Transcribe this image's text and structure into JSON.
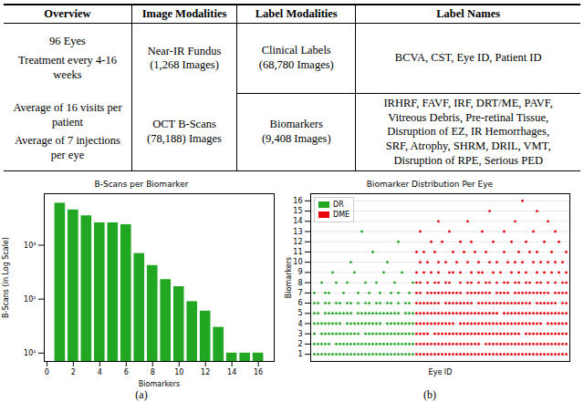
{
  "table": {
    "header": [
      "Overview",
      "Image Modalities",
      "Label Modalities",
      "Label Names"
    ],
    "rows": [
      {
        "overview": [
          "96 Eyes",
          "Treatment every 4-16 weeks"
        ],
        "image_modality": [
          "Near-IR Fundus",
          "(1,268 Images)"
        ],
        "label_modality": [
          "Clinical Labels",
          "(68,780 Images)"
        ],
        "label_names": [
          "BCVA, CST, Eye ID, Patient ID"
        ]
      },
      {
        "overview": [
          "Average of 16 visits per patient",
          "Average of 7 injections per eye"
        ],
        "image_modality": [
          "OCT B-Scans",
          "(78,188) Images"
        ],
        "label_modality": [
          "Biomarkers",
          "(9,408 Images)"
        ],
        "label_names": [
          "IRHRF, FAVF, IRF, DRT/ME, PAVF,",
          "Vitreous Debris, Pre-retinal Tissue,",
          "Disruption of EZ, IR Hemorrhages,",
          "SRF, Atrophy, SHRM, DRIL, VMT,",
          "Disruption of RPE, Serious PED"
        ]
      }
    ]
  },
  "chart_data": [
    {
      "type": "bar",
      "title": "B-Scans per Biomarker",
      "caption": "(a)",
      "x_label": "Biomarkers",
      "y_label": "B-Scans (in Log Scale)",
      "x": [
        1,
        2,
        3,
        4,
        5,
        6,
        7,
        8,
        9,
        10,
        11,
        12,
        13,
        14,
        15,
        16
      ],
      "values": [
        6000,
        4500,
        3500,
        2600,
        2600,
        2400,
        700,
        420,
        230,
        170,
        90,
        60,
        30,
        10,
        10,
        10
      ],
      "color": "#22a722",
      "log": "y",
      "xlim": [
        -0.2,
        17.2
      ],
      "xticks": [
        0,
        2,
        4,
        6,
        8,
        10,
        12,
        14,
        16
      ],
      "ylim": [
        7,
        9000
      ],
      "yticks": [
        {
          "value": 10,
          "label": "10¹"
        },
        {
          "value": 100,
          "label": "10²"
        },
        {
          "value": 1000,
          "label": "10³"
        }
      ]
    },
    {
      "type": "scatter",
      "title": "Biomarker Distribution Per Eye",
      "caption": "(b)",
      "x_label": "Eye ID",
      "y_label": "Biomarkers",
      "xlim": [
        0,
        71
      ],
      "ylim": [
        0.3,
        16.7
      ],
      "yticks": [
        1,
        2,
        3,
        4,
        5,
        6,
        7,
        8,
        9,
        10,
        11,
        12,
        13,
        14,
        15,
        16
      ],
      "grid": true,
      "legend": "upper left",
      "tick_labels": "y",
      "marker": "dot",
      "series": [
        {
          "name": "DR",
          "color": "#22a722",
          "points_by_biomarker": [
            {
              "biomarker": 1,
              "eye_ids": [
                1,
                2,
                3,
                4,
                5,
                6,
                7,
                8,
                9,
                10,
                11,
                12,
                13,
                14,
                15,
                16,
                17,
                18,
                19,
                20,
                21,
                22,
                23,
                24,
                25,
                26,
                27,
                28
              ]
            },
            {
              "biomarker": 2,
              "eye_ids": [
                1,
                2,
                3,
                4,
                5,
                7,
                8,
                9,
                10,
                11,
                12,
                13,
                14,
                15,
                16,
                17,
                18,
                19,
                20,
                21,
                22,
                23,
                24,
                25,
                26,
                27,
                28
              ]
            },
            {
              "biomarker": 3,
              "eye_ids": [
                1,
                3,
                4,
                5,
                6,
                7,
                8,
                9,
                10,
                11,
                12,
                13,
                15,
                16,
                17,
                18,
                19,
                20,
                21,
                22,
                23,
                24,
                25,
                26,
                27,
                28
              ]
            },
            {
              "biomarker": 4,
              "eye_ids": [
                1,
                2,
                3,
                4,
                5,
                6,
                7,
                8,
                10,
                11,
                12,
                13,
                14,
                15,
                16,
                17,
                18,
                19,
                21,
                22,
                23,
                24,
                25,
                26,
                27,
                28
              ]
            },
            {
              "biomarker": 5,
              "eye_ids": [
                1,
                2,
                4,
                5,
                6,
                7,
                8,
                9,
                10,
                11,
                13,
                14,
                15,
                16,
                17,
                18,
                19,
                20,
                21,
                22,
                23,
                24,
                26,
                27,
                28
              ]
            },
            {
              "biomarker": 6,
              "eye_ids": [
                1,
                2,
                4,
                5,
                7,
                8,
                10,
                11,
                13,
                15,
                16,
                18,
                19,
                21,
                22,
                24,
                26,
                27
              ]
            },
            {
              "biomarker": 7,
              "eye_ids": [
                1,
                4,
                5,
                9,
                13,
                16,
                19,
                22,
                24,
                27
              ]
            },
            {
              "biomarker": 8,
              "eye_ids": [
                3,
                7,
                10,
                15,
                18,
                23,
                28
              ]
            },
            {
              "biomarker": 9,
              "eye_ids": [
                6,
                12,
                20,
                25
              ]
            },
            {
              "biomarker": 10,
              "eye_ids": [
                11,
                21
              ]
            },
            {
              "biomarker": 11,
              "eye_ids": [
                17
              ]
            },
            {
              "biomarker": 12,
              "eye_ids": [
                24
              ]
            },
            {
              "biomarker": 13,
              "eye_ids": [
                14
              ]
            }
          ]
        },
        {
          "name": "DME",
          "color": "#e8000b",
          "points_by_biomarker": [
            {
              "biomarker": 1,
              "eye_ids": [
                29,
                30,
                31,
                32,
                33,
                34,
                35,
                36,
                37,
                38,
                39,
                40,
                41,
                42,
                43,
                44,
                45,
                46,
                47,
                48,
                49,
                50,
                51,
                52,
                53,
                54,
                55,
                56,
                57,
                58,
                59,
                60,
                61,
                62,
                63,
                64,
                65,
                66,
                67,
                68,
                69,
                70
              ]
            },
            {
              "biomarker": 2,
              "eye_ids": [
                29,
                30,
                31,
                32,
                33,
                34,
                35,
                36,
                37,
                38,
                39,
                40,
                41,
                42,
                43,
                44,
                45,
                46,
                48,
                49,
                50,
                51,
                52,
                53,
                54,
                55,
                56,
                57,
                58,
                59,
                60,
                61,
                62,
                63,
                64,
                65,
                66,
                67,
                68,
                69,
                70
              ]
            },
            {
              "biomarker": 3,
              "eye_ids": [
                29,
                30,
                31,
                32,
                34,
                35,
                36,
                37,
                38,
                39,
                40,
                41,
                42,
                43,
                44,
                45,
                46,
                47,
                48,
                49,
                50,
                51,
                52,
                53,
                54,
                55,
                56,
                57,
                59,
                60,
                61,
                62,
                63,
                64,
                65,
                66,
                67,
                68,
                69,
                70
              ]
            },
            {
              "biomarker": 4,
              "eye_ids": [
                29,
                30,
                31,
                32,
                33,
                34,
                35,
                36,
                37,
                38,
                39,
                41,
                42,
                43,
                44,
                45,
                46,
                47,
                48,
                49,
                50,
                51,
                52,
                53,
                54,
                55,
                56,
                57,
                58,
                59,
                60,
                61,
                62,
                63,
                65,
                66,
                67,
                68,
                69,
                70
              ]
            },
            {
              "biomarker": 5,
              "eye_ids": [
                29,
                30,
                31,
                32,
                33,
                34,
                35,
                36,
                37,
                38,
                39,
                40,
                41,
                42,
                43,
                44,
                45,
                46,
                47,
                48,
                49,
                50,
                51,
                53,
                54,
                55,
                56,
                57,
                58,
                59,
                60,
                61,
                62,
                63,
                64,
                65,
                66,
                67,
                68,
                69,
                70
              ]
            },
            {
              "biomarker": 6,
              "eye_ids": [
                29,
                30,
                31,
                32,
                33,
                34,
                35,
                37,
                38,
                39,
                40,
                41,
                42,
                43,
                44,
                46,
                47,
                48,
                49,
                50,
                51,
                52,
                53,
                54,
                55,
                56,
                57,
                58,
                59,
                60,
                62,
                63,
                64,
                65,
                66,
                67,
                69,
                70
              ]
            },
            {
              "biomarker": 7,
              "eye_ids": [
                29,
                30,
                32,
                33,
                34,
                35,
                36,
                37,
                38,
                39,
                40,
                41,
                43,
                44,
                45,
                46,
                47,
                48,
                49,
                51,
                52,
                53,
                54,
                56,
                57,
                58,
                59,
                60,
                61,
                62,
                63,
                64,
                65,
                67,
                68,
                69,
                70
              ]
            },
            {
              "biomarker": 8,
              "eye_ids": [
                29,
                30,
                32,
                34,
                35,
                37,
                38,
                41,
                43,
                44,
                46,
                48,
                49,
                51,
                53,
                54,
                56,
                57,
                59,
                60,
                62,
                63,
                65,
                67,
                69,
                70
              ]
            },
            {
              "biomarker": 9,
              "eye_ids": [
                29,
                31,
                33,
                35,
                38,
                39,
                41,
                44,
                46,
                47,
                50,
                52,
                55,
                57,
                59,
                62,
                64,
                66,
                68,
                70
              ]
            },
            {
              "biomarker": 10,
              "eye_ids": [
                30,
                32,
                35,
                37,
                40,
                43,
                46,
                49,
                51,
                54,
                56,
                58,
                61,
                63,
                65,
                67,
                69
              ]
            },
            {
              "biomarker": 11,
              "eye_ids": [
                29,
                31,
                34,
                39,
                42,
                45,
                48,
                53,
                57,
                60,
                62,
                66,
                70
              ]
            },
            {
              "biomarker": 12,
              "eye_ids": [
                33,
                36,
                41,
                44,
                50,
                55,
                59,
                64,
                68
              ]
            },
            {
              "biomarker": 13,
              "eye_ids": [
                30,
                38,
                47,
                53,
                61,
                67
              ]
            },
            {
              "biomarker": 14,
              "eye_ids": [
                35,
                43,
                56,
                65
              ]
            },
            {
              "biomarker": 15,
              "eye_ids": [
                49,
                62
              ]
            },
            {
              "biomarker": 16,
              "eye_ids": [
                58
              ]
            }
          ]
        }
      ]
    }
  ]
}
